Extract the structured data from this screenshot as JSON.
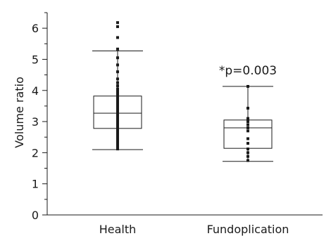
{
  "chart_data": {
    "type": "box",
    "ylabel": "Volume ratio",
    "xlabel": "",
    "ylim": [
      0,
      6.5
    ],
    "yticks": [
      0,
      1,
      2,
      3,
      4,
      5,
      6
    ],
    "grid": false,
    "categories": [
      "Health",
      "Fundoplication"
    ],
    "series": [
      {
        "category": "Health",
        "whisker_low": 2.1,
        "q1": 2.78,
        "median": 3.27,
        "q3": 3.82,
        "whisker_high": 5.27,
        "points": [
          2.12,
          2.15,
          2.18,
          2.22,
          2.28,
          2.34,
          2.4,
          2.47,
          2.54,
          2.6,
          2.66,
          2.72,
          2.77,
          2.82,
          2.87,
          2.92,
          2.97,
          3.02,
          3.07,
          3.12,
          3.17,
          3.22,
          3.27,
          3.32,
          3.37,
          3.42,
          3.47,
          3.52,
          3.57,
          3.62,
          3.67,
          3.72,
          3.78,
          3.84,
          3.9,
          3.97,
          4.05,
          4.15,
          4.25,
          4.37,
          4.6,
          4.82,
          5.05,
          5.33,
          5.7,
          6.05,
          6.18
        ]
      },
      {
        "category": "Fundoplication",
        "whisker_low": 1.72,
        "q1": 2.14,
        "median": 2.8,
        "q3": 3.05,
        "whisker_high": 4.13,
        "points": [
          1.75,
          1.88,
          2.0,
          2.12,
          2.3,
          2.45,
          2.7,
          2.8,
          2.9,
          3.0,
          3.1,
          3.43,
          4.13
        ]
      }
    ],
    "annotation": {
      "text": "*p=0.003",
      "target": "Fundoplication",
      "y": 4.65
    }
  }
}
